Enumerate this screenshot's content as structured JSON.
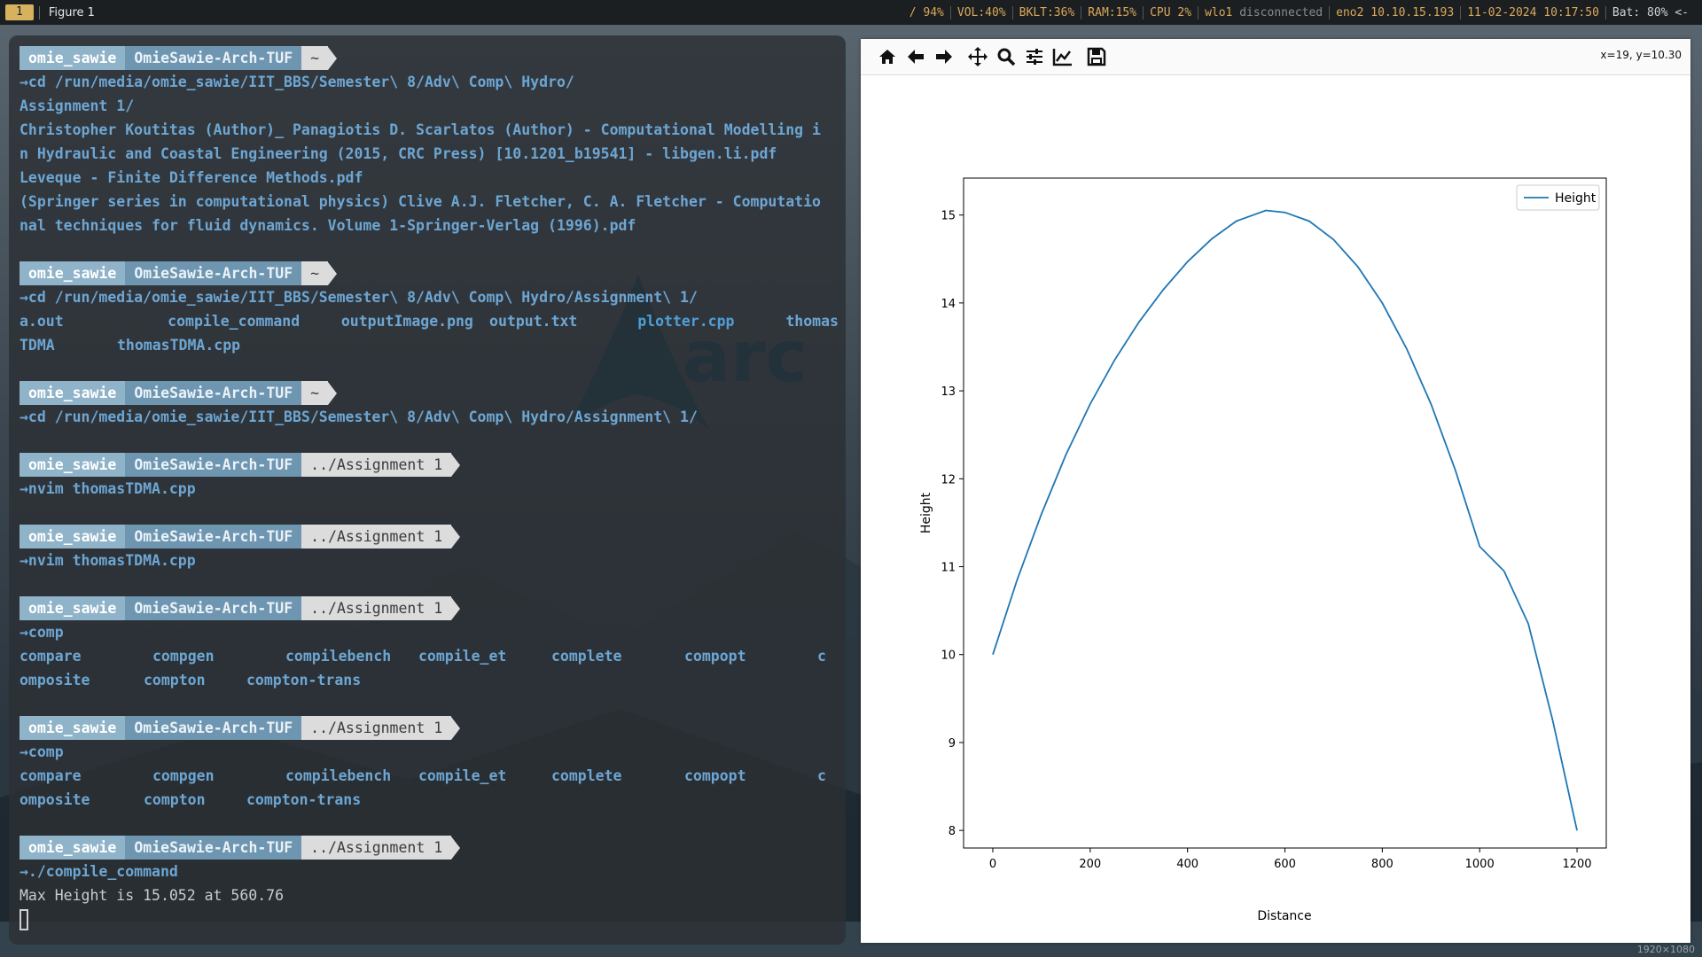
{
  "topbar": {
    "workspace": "1",
    "window_title": "Figure 1",
    "disk": "/ 94%",
    "volume": "VOL:40%",
    "backlight": "BKLT:36%",
    "ram": "RAM:15%",
    "cpu": "CPU  2%",
    "wlo_label": "wlo1",
    "wlo_status": "disconnected",
    "eno_label": "eno2",
    "eno_ip": "10.10.15.193",
    "datetime": "11-02-2024 10:17:50",
    "battery": "Bat: 80% <-"
  },
  "terminal": {
    "prompt": {
      "user": "omie_sawie",
      "host": "OmieSawie-Arch-TUF",
      "home": "~",
      "dir": "../Assignment 1"
    },
    "cmd1": "→cd /run/media/omie_sawie/IIT_BBS/Semester\\ 8/Adv\\ Comp\\ Hydro/",
    "out1": [
      "Assignment 1/",
      "Christopher Koutitas (Author)_ Panagiotis D. Scarlatos (Author) - Computational Modelling i",
      "n Hydraulic and Coastal Engineering (2015, CRC Press) [10.1201_b19541] - libgen.li.pdf",
      "Leveque - Finite Difference Methods.pdf",
      "(Springer series in computational physics) Clive A.J. Fletcher, C. A. Fletcher - Computatio",
      "nal techniques for fluid dynamics. Volume 1-Springer-Verlag (1996).pdf"
    ],
    "cmd2": "→cd /run/media/omie_sawie/IIT_BBS/Semester\\ 8/Adv\\ Comp\\ Hydro/Assignment\\ 1/",
    "out2_row1": [
      "a.out",
      "compile_command",
      "outputImage.png",
      "output.txt",
      "plotter.cpp",
      "thomas"
    ],
    "out2_row2": [
      "TDMA",
      "thomasTDMA.cpp"
    ],
    "cmd3": "→cd /run/media/omie_sawie/IIT_BBS/Semester\\ 8/Adv\\ Comp\\ Hydro/Assignment\\ 1/",
    "cmd4": "→nvim thomasTDMA.cpp",
    "cmd5": "→nvim thomasTDMA.cpp",
    "cmd6": "→comp",
    "comp_row1": [
      "compare",
      "compgen",
      "compilebench",
      "compile_et",
      "complete",
      "compopt",
      "c"
    ],
    "comp_row2": [
      "omposite",
      "compton",
      "compton-trans"
    ],
    "cmd7": "→comp",
    "cmd8": "→./compile_command",
    "result": "Max Height is 15.052 at 560.76"
  },
  "figure": {
    "coords": "x=19, y=10.30",
    "toolbar_icons": [
      "home-icon",
      "back-icon",
      "forward-icon",
      "pan-icon",
      "zoom-icon",
      "configure-icon",
      "edit-axes-icon",
      "save-icon"
    ]
  },
  "chart_data": {
    "type": "line",
    "title": "",
    "xlabel": "Distance",
    "ylabel": "Height",
    "xlim": [
      -60,
      1260
    ],
    "ylim": [
      7.8,
      15.42
    ],
    "xticks": [
      0,
      200,
      400,
      600,
      800,
      1000,
      1200
    ],
    "yticks": [
      8,
      9,
      10,
      11,
      12,
      13,
      14,
      15
    ],
    "legend": "top-right",
    "grid": false,
    "series": [
      {
        "name": "Height",
        "color": "#1f77b4",
        "x": [
          0,
          50,
          100,
          150,
          200,
          250,
          300,
          350,
          400,
          450,
          500,
          560.76,
          600,
          650,
          700,
          750,
          800,
          850,
          900,
          950,
          1000,
          1050,
          1100,
          1150,
          1200
        ],
        "y": [
          10.0,
          10.85,
          11.6,
          12.27,
          12.85,
          13.35,
          13.78,
          14.15,
          14.47,
          14.73,
          14.93,
          15.052,
          15.03,
          14.93,
          14.72,
          14.41,
          14.0,
          13.48,
          12.85,
          12.1,
          11.23,
          10.95,
          10.35,
          9.25,
          8.0
        ]
      }
    ],
    "max_point": {
      "x": 560.76,
      "y": 15.052
    },
    "end_point": {
      "x": 1200,
      "y": 8.0
    }
  },
  "corner_text": "1920×1080"
}
